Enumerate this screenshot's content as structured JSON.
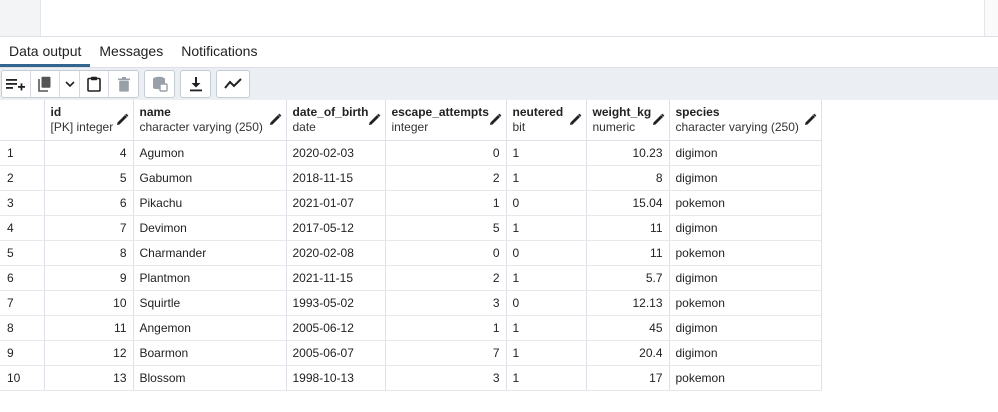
{
  "tabs": [
    {
      "label": "Data output",
      "active": true
    },
    {
      "label": "Messages",
      "active": false
    },
    {
      "label": "Notifications",
      "active": false
    }
  ],
  "toolbar": {
    "buttons": [
      {
        "icon": "add-row-icon"
      },
      {
        "icon": "copy-icon"
      },
      {
        "icon": "chevron-down-icon"
      },
      {
        "icon": "paste-icon"
      },
      {
        "icon": "delete-icon"
      },
      {
        "icon": "save-data-icon"
      },
      {
        "icon": "download-icon"
      },
      {
        "icon": "graph-visualiser-icon"
      }
    ]
  },
  "columns": [
    {
      "name": "id",
      "type": "[PK] integer",
      "align": "right"
    },
    {
      "name": "name",
      "type": "character varying (250)",
      "align": "left"
    },
    {
      "name": "date_of_birth",
      "type": "date",
      "align": "left"
    },
    {
      "name": "escape_attempts",
      "type": "integer",
      "align": "right"
    },
    {
      "name": "neutered",
      "type": "bit",
      "align": "left"
    },
    {
      "name": "weight_kg",
      "type": "numeric",
      "align": "right"
    },
    {
      "name": "species",
      "type": "character varying (250)",
      "align": "left"
    }
  ],
  "rows": [
    {
      "n": "1",
      "cells": [
        "4",
        "Agumon",
        "2020-02-03",
        "0",
        "1",
        "10.23",
        "digimon"
      ]
    },
    {
      "n": "2",
      "cells": [
        "5",
        "Gabumon",
        "2018-11-15",
        "2",
        "1",
        "8",
        "digimon"
      ]
    },
    {
      "n": "3",
      "cells": [
        "6",
        "Pikachu",
        "2021-01-07",
        "1",
        "0",
        "15.04",
        "pokemon"
      ]
    },
    {
      "n": "4",
      "cells": [
        "7",
        "Devimon",
        "2017-05-12",
        "5",
        "1",
        "11",
        "digimon"
      ]
    },
    {
      "n": "5",
      "cells": [
        "8",
        "Charmander",
        "2020-02-08",
        "0",
        "0",
        "11",
        "pokemon"
      ]
    },
    {
      "n": "6",
      "cells": [
        "9",
        "Plantmon",
        "2021-11-15",
        "2",
        "1",
        "5.7",
        "digimon"
      ]
    },
    {
      "n": "7",
      "cells": [
        "10",
        "Squirtle",
        "1993-05-02",
        "3",
        "0",
        "12.13",
        "pokemon"
      ]
    },
    {
      "n": "8",
      "cells": [
        "11",
        "Angemon",
        "2005-06-12",
        "1",
        "1",
        "45",
        "digimon"
      ]
    },
    {
      "n": "9",
      "cells": [
        "12",
        "Boarmon",
        "2005-06-07",
        "7",
        "1",
        "20.4",
        "digimon"
      ]
    },
    {
      "n": "10",
      "cells": [
        "13",
        "Blossom",
        "1998-10-13",
        "3",
        "1",
        "17",
        "pokemon"
      ]
    }
  ],
  "colors": {
    "accent": "#326690",
    "toolbar_bg": "#ebeef3",
    "border": "#dde0e6"
  }
}
